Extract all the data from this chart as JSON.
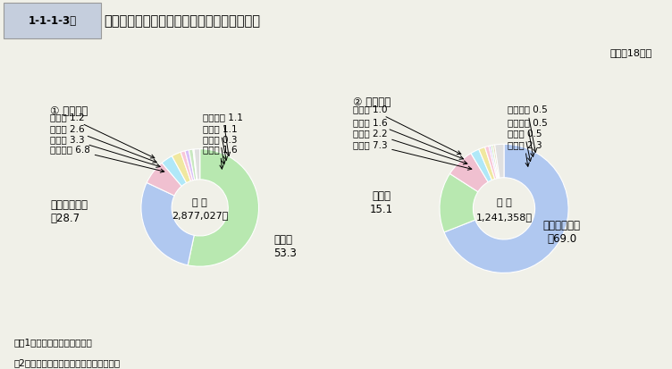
{
  "chart1": {
    "title": "① 認知件数",
    "center_label": "総 数",
    "center_value": "2,877,027件",
    "slices": [
      {
        "label": "窃盗",
        "value": 53.3,
        "color": "#b8e8b0"
      },
      {
        "label": "交通関係業過",
        "value": 28.7,
        "color": "#b0c8f0"
      },
      {
        "label": "器物損壊",
        "value": 6.8,
        "color": "#f0c0d0"
      },
      {
        "label": "横領",
        "value": 3.3,
        "color": "#b0e8f8"
      },
      {
        "label": "詐欺",
        "value": 2.6,
        "color": "#f0e8a0"
      },
      {
        "label": "傂害",
        "value": 1.2,
        "color": "#f8c8d8"
      },
      {
        "label": "住居侵入",
        "value": 1.1,
        "color": "#d8c0f8"
      },
      {
        "label": "暴行",
        "value": 1.1,
        "color": "#c8e8c0"
      },
      {
        "label": "恐嗝",
        "value": 0.3,
        "color": "#e8d8b8"
      },
      {
        "label": "その他",
        "value": 1.6,
        "color": "#e0e0e0"
      }
    ]
  },
  "chart2": {
    "title": "② 検挙人員",
    "center_label": "総 数",
    "center_value": "1,241,358人",
    "slices": [
      {
        "label": "交通関係業過",
        "value": 69.0,
        "color": "#b0c8f0"
      },
      {
        "label": "窃盗",
        "value": 15.1,
        "color": "#b8e8b0"
      },
      {
        "label": "横領",
        "value": 7.3,
        "color": "#f0c0d0"
      },
      {
        "label": "傂害",
        "value": 2.2,
        "color": "#b0e8f8"
      },
      {
        "label": "暴行",
        "value": 1.6,
        "color": "#f0e8a0"
      },
      {
        "label": "詐欺",
        "value": 1.0,
        "color": "#f8c8d8"
      },
      {
        "label": "器物損壊",
        "value": 0.5,
        "color": "#d8c0f8"
      },
      {
        "label": "住居侵入",
        "value": 0.5,
        "color": "#c8e8c0"
      },
      {
        "label": "恐嗝",
        "value": 0.5,
        "color": "#e8d8b8"
      },
      {
        "label": "その他",
        "value": 2.3,
        "color": "#e0e0e0"
      }
    ]
  },
  "title": "刑法犯の認知件数・検挙人員の罪名別構成比",
  "title_box": "1-1-1-3図",
  "year_label": "（平成18年）",
  "note1": "注　1　警察庁の統計による。",
  "note2": "　2　「横領」は，遠失物等横領を含む。",
  "bg_color": "#f0f0e8",
  "header_bg": "#c8d0e0",
  "c1_left_labels": [
    [
      "傂　害",
      "1.2"
    ],
    [
      "詐　欺",
      "2.6"
    ],
    [
      "横　領",
      "3.3"
    ],
    [
      "器物損壊",
      "6.8"
    ]
  ],
  "c1_right_labels": [
    [
      "住居侵入",
      "1.1"
    ],
    [
      "暴　行",
      "1.1"
    ],
    [
      "恐　嗝",
      "0.3"
    ],
    [
      "その他",
      "1.6"
    ]
  ],
  "c2_left_labels": [
    [
      "詐　欺",
      "1.0"
    ],
    [
      "暴　行",
      "1.6"
    ],
    [
      "傂　害",
      "2.2"
    ],
    [
      "横　領",
      "7.3"
    ]
  ],
  "c2_right_labels": [
    [
      "器物損壊",
      "0.5"
    ],
    [
      "住居侵入",
      "0.5"
    ],
    [
      "恐　嗝",
      "0.5"
    ],
    [
      "その他",
      "2.3"
    ]
  ]
}
